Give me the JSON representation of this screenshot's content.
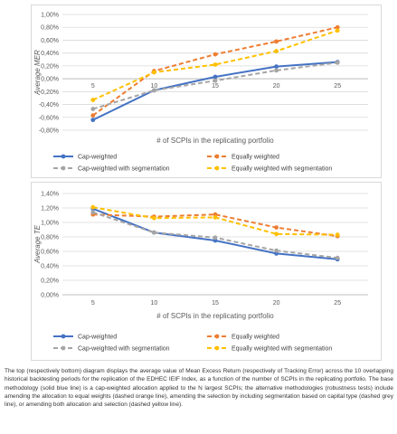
{
  "chart_data": [
    {
      "type": "line",
      "title": "",
      "xlabel": "# of SCPIs in the replicating portfolio",
      "ylabel": "Average MER",
      "x": [
        5,
        10,
        15,
        20,
        25
      ],
      "x_tick_labels": [
        "5",
        "10",
        "15",
        "20",
        "25"
      ],
      "ylim": [
        -0.8,
        1.0
      ],
      "y_tick_labels": [
        "-0,80%",
        "-0,60%",
        "-0,40%",
        "-0,20%",
        "0,00%",
        "0,20%",
        "0,40%",
        "0,60%",
        "0,80%",
        "1,00%"
      ],
      "grid": true,
      "legend_position": "bottom",
      "series": [
        {
          "name": "Cap-weighted",
          "color": "#4472c4",
          "style": "solid",
          "values": [
            -0.64,
            -0.18,
            0.03,
            0.19,
            0.26
          ]
        },
        {
          "name": "Equally weighted",
          "color": "#ed7d31",
          "style": "dashed",
          "values": [
            -0.57,
            0.12,
            0.38,
            0.58,
            0.8
          ]
        },
        {
          "name": "Cap-weighted with segmentation",
          "color": "#a5a5a5",
          "style": "dashed",
          "values": [
            -0.47,
            -0.18,
            -0.03,
            0.13,
            0.25
          ]
        },
        {
          "name": "Equally weighted with segmentation",
          "color": "#ffc000",
          "style": "dashed",
          "values": [
            -0.33,
            0.1,
            0.22,
            0.43,
            0.75
          ]
        }
      ]
    },
    {
      "type": "line",
      "title": "",
      "xlabel": "# of SCPIs in the replicating portfolio",
      "ylabel": "Average TE",
      "x": [
        5,
        10,
        15,
        20,
        25
      ],
      "x_tick_labels": [
        "5",
        "10",
        "15",
        "20",
        "25"
      ],
      "ylim": [
        0,
        1.4
      ],
      "y_tick_labels": [
        "0,00%",
        "0,20%",
        "0,40%",
        "0,60%",
        "0,80%",
        "1,00%",
        "1,20%",
        "1,40%"
      ],
      "grid": true,
      "legend_position": "bottom",
      "series": [
        {
          "name": "Cap-weighted",
          "color": "#4472c4",
          "style": "solid",
          "values": [
            1.19,
            0.86,
            0.75,
            0.57,
            0.49
          ]
        },
        {
          "name": "Equally weighted",
          "color": "#ed7d31",
          "style": "dashed",
          "values": [
            1.11,
            1.08,
            1.11,
            0.93,
            0.81
          ]
        },
        {
          "name": "Cap-weighted with segmentation",
          "color": "#a5a5a5",
          "style": "dashed",
          "values": [
            1.14,
            0.86,
            0.79,
            0.61,
            0.51
          ]
        },
        {
          "name": "Equally weighted with segmentation",
          "color": "#ffc000",
          "style": "dashed",
          "values": [
            1.21,
            1.06,
            1.07,
            0.84,
            0.83
          ]
        }
      ]
    }
  ],
  "caption": "The top (respectively bottom) diagram displays the average value of Mean Excess Return (respectively of Tracking Error) across the 10 overlapping historical backtesting periods for the replication of the EDHEC IEIF Index, as a function of the number of SCPIs in the replicating portfolio. The base methodology (solid blue line) is a cap-weighted allocation applied to the N largest SCPIs; the alternative methodologies (robustness tests) include amending the allocation to equal weights (dashed orange line), amending the selection by including segmentation based on capital type (dashed grey line), or amending both allocation and selection (dashed yellow line)."
}
